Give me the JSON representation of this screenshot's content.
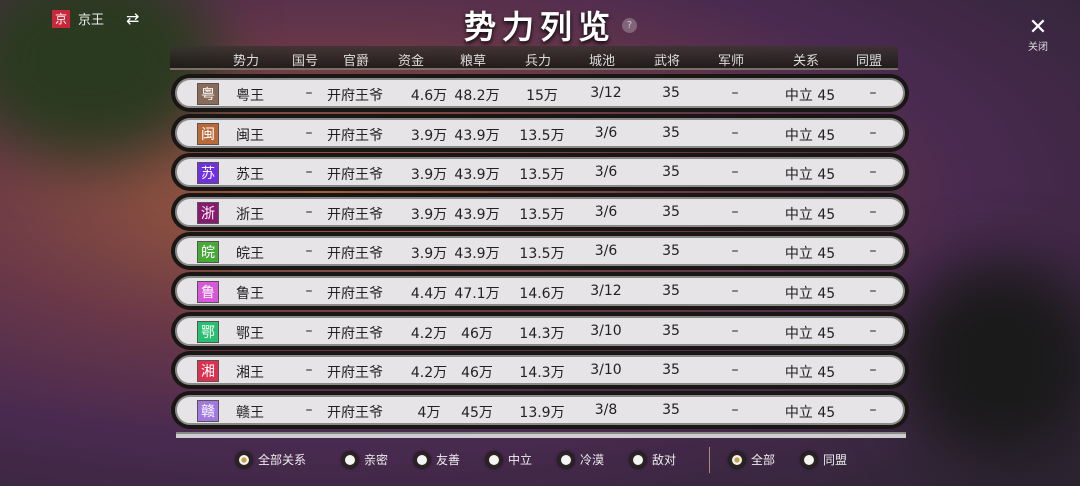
{
  "topbar": {
    "badge": "京",
    "name": "京王",
    "swap_icon": "⇄"
  },
  "title": "势力列览",
  "help": "?",
  "close": {
    "icon": "✕",
    "label": "关闭"
  },
  "columns": [
    "势力",
    "国号",
    "官爵",
    "资金",
    "粮草",
    "兵力",
    "城池",
    "武将",
    "军师",
    "关系",
    "同盟"
  ],
  "rows": [
    {
      "badge": "粤",
      "color": "#8a6a58",
      "name": "粤王",
      "guohao": "–",
      "rank": "开府王爷",
      "gold": "4.6万",
      "food": "48.2万",
      "troops": "15万",
      "cities": "3/12",
      "generals": "35",
      "advisor": "–",
      "relation": "中立 45",
      "alliance": "–"
    },
    {
      "badge": "闽",
      "color": "#b86a38",
      "name": "闽王",
      "guohao": "–",
      "rank": "开府王爷",
      "gold": "3.9万",
      "food": "43.9万",
      "troops": "13.5万",
      "cities": "3/6",
      "generals": "35",
      "advisor": "–",
      "relation": "中立 45",
      "alliance": "–"
    },
    {
      "badge": "苏",
      "color": "#7030e0",
      "name": "苏王",
      "guohao": "–",
      "rank": "开府王爷",
      "gold": "3.9万",
      "food": "43.9万",
      "troops": "13.5万",
      "cities": "3/6",
      "generals": "35",
      "advisor": "–",
      "relation": "中立 45",
      "alliance": "–"
    },
    {
      "badge": "浙",
      "color": "#8a1a70",
      "name": "浙王",
      "guohao": "–",
      "rank": "开府王爷",
      "gold": "3.9万",
      "food": "43.9万",
      "troops": "13.5万",
      "cities": "3/6",
      "generals": "35",
      "advisor": "–",
      "relation": "中立 45",
      "alliance": "–"
    },
    {
      "badge": "皖",
      "color": "#48a838",
      "name": "皖王",
      "guohao": "–",
      "rank": "开府王爷",
      "gold": "3.9万",
      "food": "43.9万",
      "troops": "13.5万",
      "cities": "3/6",
      "generals": "35",
      "advisor": "–",
      "relation": "中立 45",
      "alliance": "–"
    },
    {
      "badge": "鲁",
      "color": "#d858d8",
      "name": "鲁王",
      "guohao": "–",
      "rank": "开府王爷",
      "gold": "4.4万",
      "food": "47.1万",
      "troops": "14.6万",
      "cities": "3/12",
      "generals": "35",
      "advisor": "–",
      "relation": "中立 45",
      "alliance": "–"
    },
    {
      "badge": "鄂",
      "color": "#28c070",
      "name": "鄂王",
      "guohao": "–",
      "rank": "开府王爷",
      "gold": "4.2万",
      "food": "46万",
      "troops": "14.3万",
      "cities": "3/10",
      "generals": "35",
      "advisor": "–",
      "relation": "中立 45",
      "alliance": "–"
    },
    {
      "badge": "湘",
      "color": "#e03050",
      "name": "湘王",
      "guohao": "–",
      "rank": "开府王爷",
      "gold": "4.2万",
      "food": "46万",
      "troops": "14.3万",
      "cities": "3/10",
      "generals": "35",
      "advisor": "–",
      "relation": "中立 45",
      "alliance": "–"
    },
    {
      "badge": "赣",
      "color": "#a078e0",
      "name": "赣王",
      "guohao": "–",
      "rank": "开府王爷",
      "gold": "4万",
      "food": "45万",
      "troops": "13.9万",
      "cities": "3/8",
      "generals": "35",
      "advisor": "–",
      "relation": "中立 45",
      "alliance": "–"
    }
  ],
  "filters": {
    "relation": [
      {
        "label": "全部关系",
        "selected": true
      },
      {
        "label": "亲密",
        "selected": false
      },
      {
        "label": "友善",
        "selected": false
      },
      {
        "label": "中立",
        "selected": false
      },
      {
        "label": "冷漠",
        "selected": false
      },
      {
        "label": "敌对",
        "selected": false
      }
    ],
    "alliance": [
      {
        "label": "全部",
        "selected": true
      },
      {
        "label": "同盟",
        "selected": false
      }
    ]
  }
}
